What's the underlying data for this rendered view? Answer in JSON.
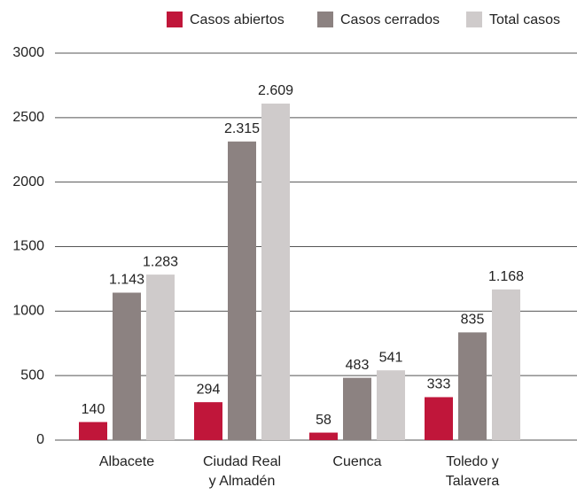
{
  "chart_data": {
    "type": "bar",
    "categories": [
      "Albacete",
      "Ciudad Real y Almadén",
      "Cuenca",
      "Toledo y Talavera"
    ],
    "series": [
      {
        "name": "Casos abiertos",
        "color": "#c0163a",
        "values": [
          140,
          294,
          58,
          333
        ],
        "value_labels": [
          "140",
          "294",
          "58",
          "333"
        ]
      },
      {
        "name": "Casos cerrados",
        "color": "#8c8281",
        "values": [
          1143,
          2315,
          483,
          835
        ],
        "value_labels": [
          "1.143",
          "2.315",
          "483",
          "835"
        ]
      },
      {
        "name": "Total casos",
        "color": "#cfcbcb",
        "values": [
          1283,
          2609,
          541,
          1168
        ],
        "value_labels": [
          "1.283",
          "2.609",
          "541",
          "1.168"
        ]
      }
    ],
    "ylim": [
      0,
      3000
    ],
    "yticks": [
      0,
      500,
      1000,
      1500,
      2000,
      2500,
      3000
    ],
    "grid": true,
    "legend": "top-right"
  }
}
